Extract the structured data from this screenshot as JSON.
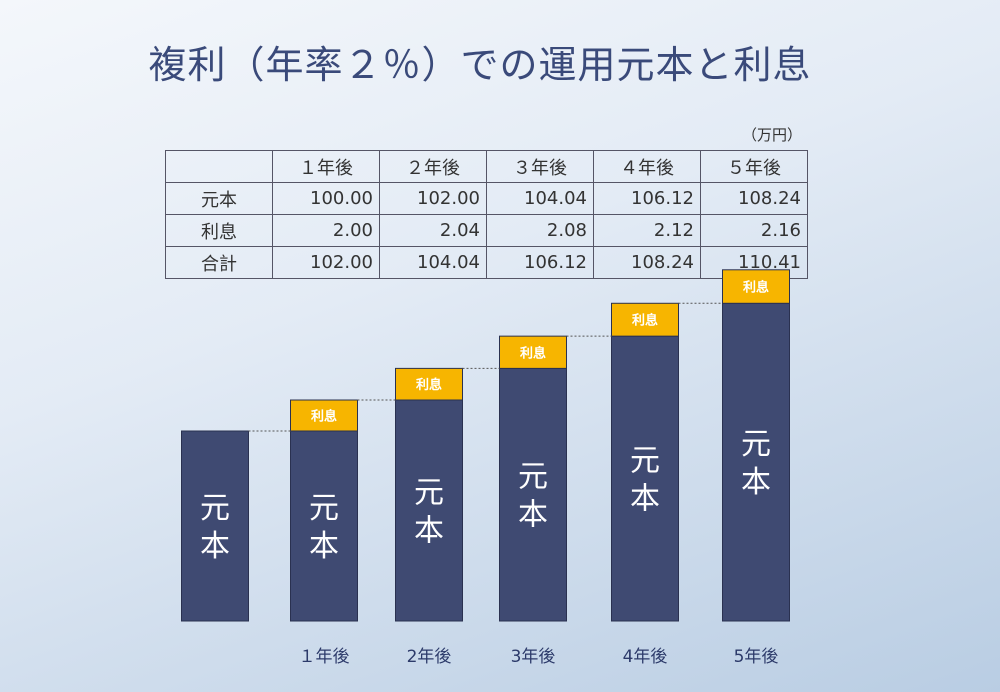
{
  "title": "複利（年率２％）での運用元本と利息",
  "unit": "（万円）",
  "table": {
    "headers": [
      "",
      "１年後",
      "２年後",
      "３年後",
      "４年後",
      "５年後"
    ],
    "rows": [
      {
        "label": "元本",
        "values": [
          "100.00",
          "102.00",
          "104.04",
          "106.12",
          "108.24"
        ]
      },
      {
        "label": "利息",
        "values": [
          "2.00",
          "2.04",
          "2.08",
          "2.12",
          "2.16"
        ]
      },
      {
        "label": "合計",
        "values": [
          "102.00",
          "104.04",
          "106.12",
          "108.24",
          "110.41"
        ]
      }
    ]
  },
  "chart_data": {
    "type": "bar",
    "stacked": true,
    "categories": [
      "",
      "１年後",
      "2年後",
      "3年後",
      "4年後",
      "5年後"
    ],
    "series": [
      {
        "name": "元本",
        "values": [
          100.0,
          100.0,
          102.0,
          104.04,
          106.12,
          108.24
        ],
        "color": "#3f4a72"
      },
      {
        "name": "利息",
        "values": [
          0,
          2.0,
          2.04,
          2.08,
          2.12,
          2.16
        ],
        "color": "#f7b500"
      }
    ],
    "bar_label_principal": "元本",
    "bar_label_interest": "利息",
    "connector_lines": "dotted"
  }
}
